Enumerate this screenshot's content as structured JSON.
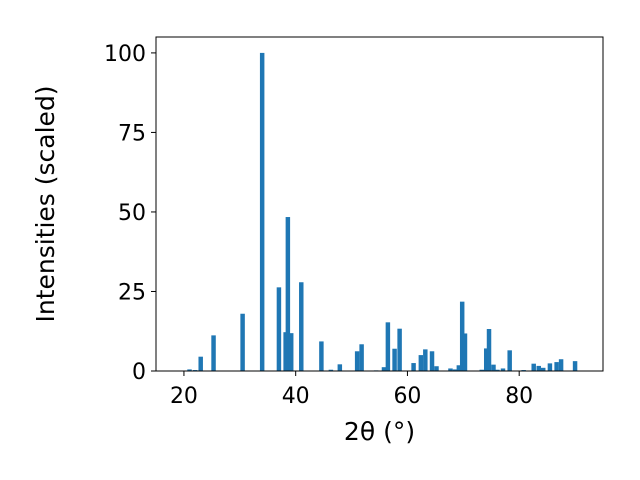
{
  "chart_data": {
    "type": "bar",
    "title": "",
    "xlabel": "2θ (°)",
    "ylabel": "Intensities (scaled)",
    "xlim": [
      15,
      95
    ],
    "ylim": [
      0,
      105
    ],
    "xticks": [
      20,
      40,
      60,
      80
    ],
    "yticks": [
      0,
      25,
      50,
      75,
      100
    ],
    "grid": false,
    "bar_color": "#1f77b4",
    "bar_width": 0.8,
    "x": [
      21.0,
      22.0,
      23.0,
      25.3,
      30.5,
      34.0,
      37.0,
      38.2,
      38.6,
      39.2,
      41.0,
      44.6,
      46.3,
      47.9,
      51.0,
      51.8,
      54.4,
      55.8,
      56.5,
      57.7,
      58.6,
      61.1,
      62.4,
      63.2,
      64.4,
      65.2,
      67.7,
      68.5,
      69.2,
      69.8,
      70.3,
      73.3,
      74.1,
      74.6,
      75.4,
      76.1,
      77.1,
      78.3,
      80.8,
      82.6,
      83.5,
      84.3,
      85.5,
      86.7,
      87.5,
      90.0
    ],
    "values": [
      0.5,
      0.3,
      4.5,
      11.2,
      18.0,
      100.0,
      26.3,
      12.2,
      48.4,
      11.9,
      27.9,
      9.3,
      0.4,
      2.1,
      6.2,
      8.4,
      0.2,
      1.2,
      15.3,
      7.0,
      13.3,
      2.5,
      5.0,
      6.8,
      6.2,
      1.5,
      0.8,
      0.5,
      1.8,
      21.8,
      11.8,
      0.4,
      7.1,
      13.2,
      2.0,
      0.4,
      0.8,
      6.5,
      0.3,
      2.3,
      1.6,
      1.0,
      2.4,
      2.8,
      3.7,
      3.1
    ]
  }
}
